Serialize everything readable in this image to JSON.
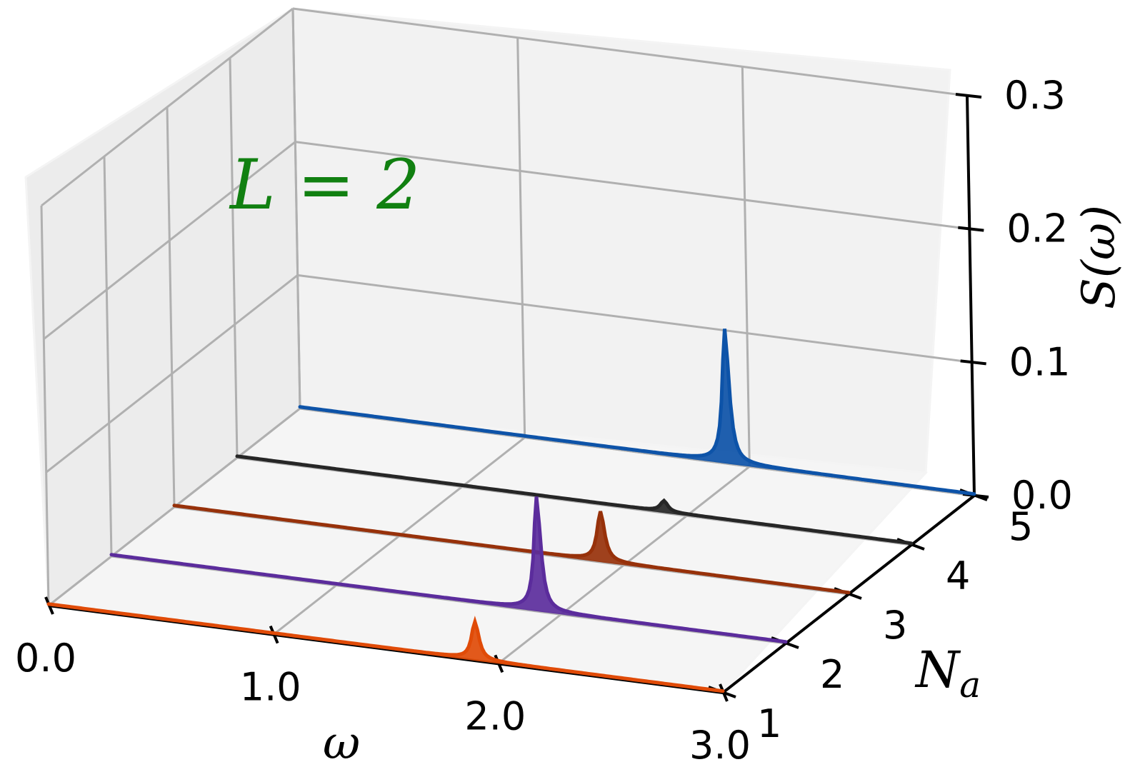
{
  "chart_data": {
    "type": "line",
    "annotation": "L = 2",
    "annotation_color": "#118011",
    "xlabel": "ω",
    "ylabel_main": "N",
    "ylabel_sub": "a",
    "zlabel": "S(ω)",
    "xlim": [
      0.0,
      3.0
    ],
    "ylim": [
      1,
      5
    ],
    "zlim": [
      0.0,
      0.3
    ],
    "x_ticks": [
      "0.0",
      "1.0",
      "2.0",
      "3.0"
    ],
    "y_ticks": [
      "1",
      "2",
      "3",
      "4",
      "5"
    ],
    "z_ticks": [
      "0.0",
      "0.1",
      "0.2",
      "0.3"
    ],
    "series": [
      {
        "na": 5,
        "color": "#0d53a8",
        "peak": 1.9,
        "height": 0.1,
        "width": 0.018
      },
      {
        "na": 4,
        "color": "#262626",
        "peak": 1.9,
        "height": 0.008,
        "width": 0.02
      },
      {
        "na": 3,
        "color": "#97310a",
        "peak": 1.9,
        "height": 0.037,
        "width": 0.02
      },
      {
        "na": 2,
        "color": "#5b2c9c",
        "peak": 1.9,
        "height": 0.085,
        "width": 0.018
      },
      {
        "na": 1,
        "color": "#e04b08",
        "peak": 1.9,
        "height": 0.028,
        "width": 0.02
      }
    ]
  }
}
